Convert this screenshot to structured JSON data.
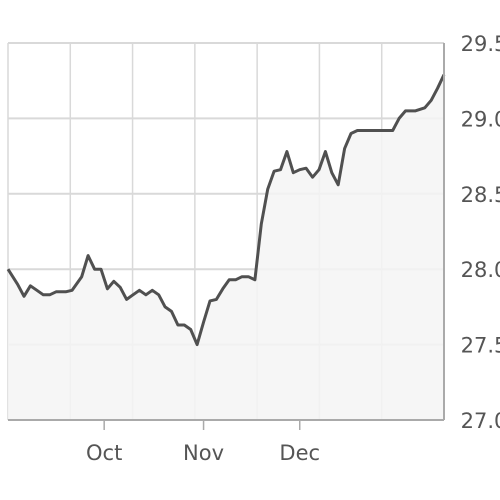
{
  "chart_data": {
    "type": "area",
    "title": "",
    "xlabel": "",
    "ylabel": "",
    "ylim": [
      27.0,
      29.5
    ],
    "y_ticks": [
      "27.0",
      "27.5",
      "28.0",
      "28.5",
      "29.0",
      "29.5"
    ],
    "x_ticks": [
      {
        "label": "Oct",
        "day": 30
      },
      {
        "label": "Nov",
        "day": 61
      },
      {
        "label": "Dec",
        "day": 91
      }
    ],
    "x_range": [
      0,
      136
    ],
    "grid": true,
    "y_axis_position": "right",
    "series": [
      {
        "values": [
          [
            0,
            28.0
          ],
          [
            3,
            27.9
          ],
          [
            5,
            27.82
          ],
          [
            7,
            27.89
          ],
          [
            9,
            27.86
          ],
          [
            11,
            27.83
          ],
          [
            13,
            27.83
          ],
          [
            15,
            27.85
          ],
          [
            18,
            27.85
          ],
          [
            20,
            27.86
          ],
          [
            23,
            27.95
          ],
          [
            25,
            28.09
          ],
          [
            27,
            28.0
          ],
          [
            29,
            28.0
          ],
          [
            31,
            27.87
          ],
          [
            33,
            27.92
          ],
          [
            35,
            27.88
          ],
          [
            37,
            27.8
          ],
          [
            39,
            27.83
          ],
          [
            41,
            27.86
          ],
          [
            43,
            27.83
          ],
          [
            45,
            27.86
          ],
          [
            47,
            27.83
          ],
          [
            49,
            27.75
          ],
          [
            51,
            27.72
          ],
          [
            53,
            27.63
          ],
          [
            55,
            27.63
          ],
          [
            57,
            27.6
          ],
          [
            59,
            27.5
          ],
          [
            61,
            27.65
          ],
          [
            63,
            27.79
          ],
          [
            65,
            27.8
          ],
          [
            67,
            27.87
          ],
          [
            69,
            27.93
          ],
          [
            71,
            27.93
          ],
          [
            73,
            27.95
          ],
          [
            75,
            27.95
          ],
          [
            77,
            27.93
          ],
          [
            79,
            28.3
          ],
          [
            81,
            28.53
          ],
          [
            83,
            28.65
          ],
          [
            85,
            28.66
          ],
          [
            87,
            28.78
          ],
          [
            89,
            28.64
          ],
          [
            91,
            28.66
          ],
          [
            93,
            28.67
          ],
          [
            95,
            28.61
          ],
          [
            97,
            28.66
          ],
          [
            99,
            28.78
          ],
          [
            101,
            28.64
          ],
          [
            103,
            28.56
          ],
          [
            105,
            28.8
          ],
          [
            107,
            28.9
          ],
          [
            109,
            28.92
          ],
          [
            112,
            28.92
          ],
          [
            115,
            28.92
          ],
          [
            118,
            28.92
          ],
          [
            120,
            28.92
          ],
          [
            122,
            29.0
          ],
          [
            124,
            29.05
          ],
          [
            127,
            29.05
          ],
          [
            130,
            29.07
          ],
          [
            132,
            29.12
          ],
          [
            134,
            29.2
          ],
          [
            136,
            29.29
          ]
        ]
      }
    ],
    "colors": {
      "line": "#505050",
      "fill": "#f5f5f5",
      "grid": "#d9d9d9",
      "axis": "#aaaaaa"
    }
  }
}
